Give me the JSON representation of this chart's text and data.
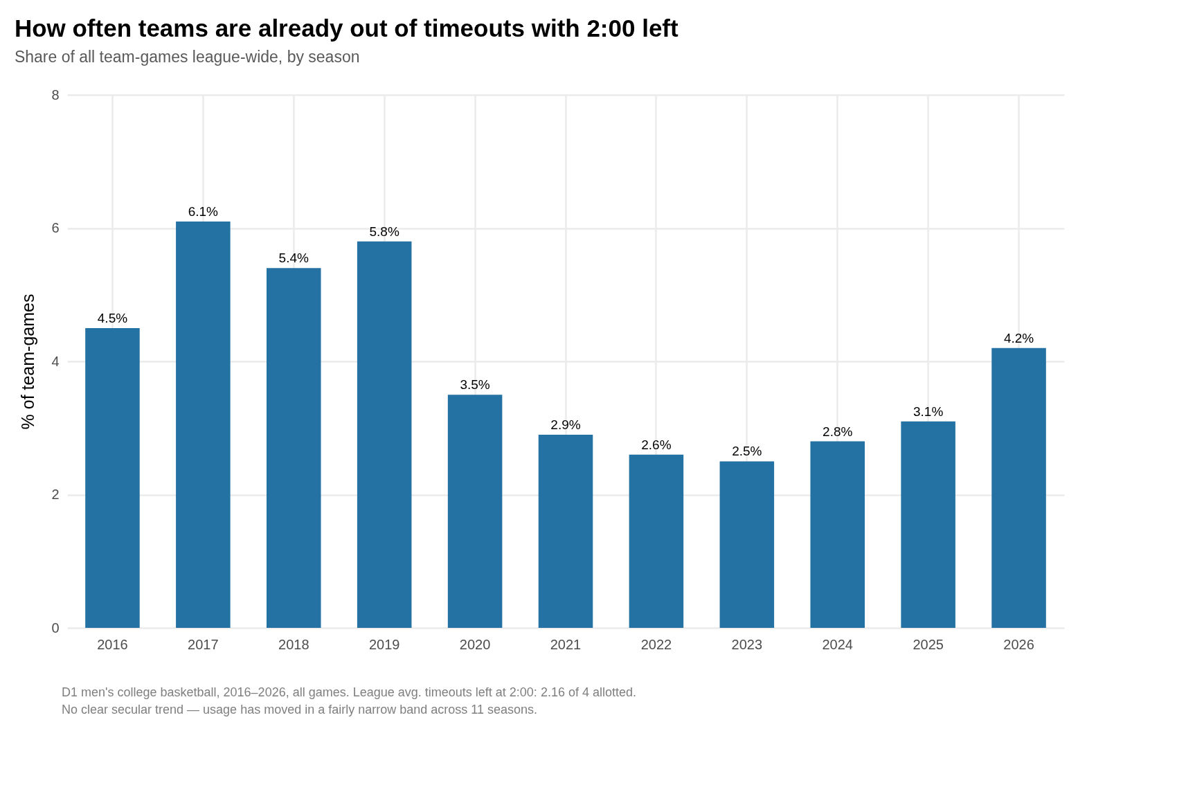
{
  "chart_data": {
    "type": "bar",
    "title": "How often teams are already out of timeouts with 2:00 left",
    "subtitle": "Share of all team-games league-wide, by season",
    "ylabel": "% of team-games",
    "categories": [
      "2016",
      "2017",
      "2018",
      "2019",
      "2020",
      "2021",
      "2022",
      "2023",
      "2024",
      "2025",
      "2026"
    ],
    "values": [
      4.5,
      6.1,
      5.4,
      5.8,
      3.5,
      2.9,
      2.6,
      2.5,
      2.8,
      3.1,
      4.2
    ],
    "value_labels": [
      "4.5%",
      "6.1%",
      "5.4%",
      "5.8%",
      "3.5%",
      "2.9%",
      "2.6%",
      "2.5%",
      "2.8%",
      "3.1%",
      "4.2%"
    ],
    "color": "#2472a4",
    "ylim": [
      0,
      8
    ],
    "yticks": [
      0,
      2,
      4,
      6,
      8
    ],
    "grid": true,
    "annotations": [
      "D1 men's college basketball, 2016–2026, all games. League avg. timeouts left at 2:00: 2.16 of 4 allotted.",
      "No clear secular trend — usage has moved in a fairly narrow band across 11 seasons."
    ]
  }
}
